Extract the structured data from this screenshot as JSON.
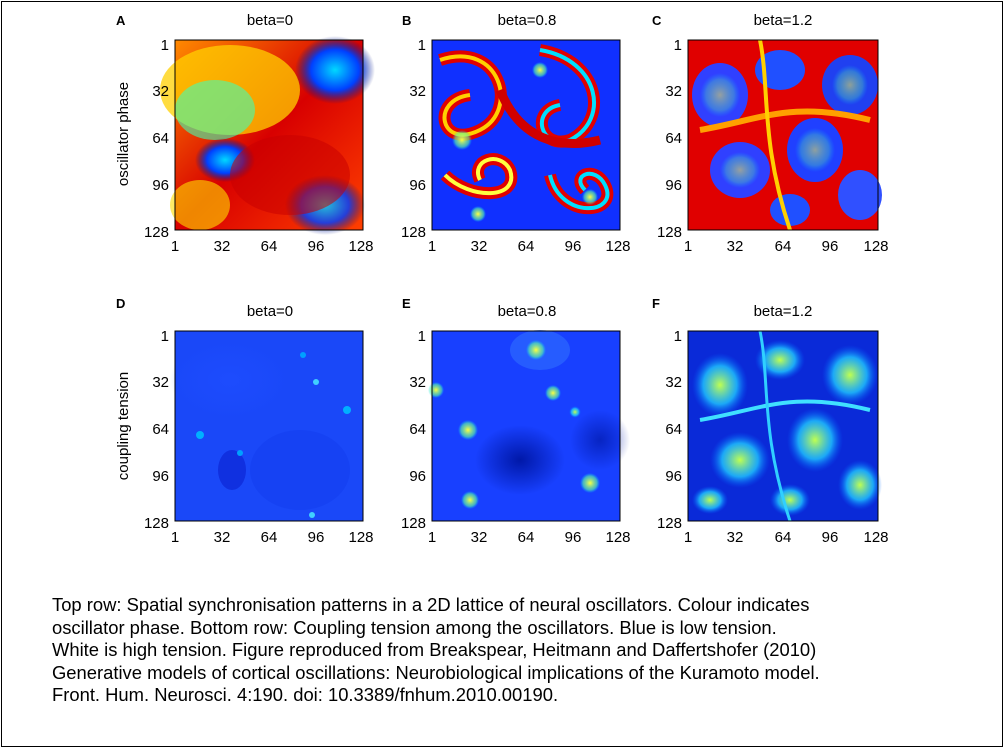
{
  "figure": {
    "rows": [
      {
        "ylabel": "oscillator phase",
        "colormap": "jet",
        "panels": [
          {
            "letter": "A",
            "title": "beta=0",
            "pattern": "smooth-phase-domains"
          },
          {
            "letter": "B",
            "title": "beta=0.8",
            "pattern": "spiral-waves"
          },
          {
            "letter": "C",
            "title": "beta=1.2",
            "pattern": "turbulent-spirals"
          }
        ]
      },
      {
        "ylabel": "coupling tension",
        "colormap": "jet-low",
        "panels": [
          {
            "letter": "D",
            "title": "beta=0",
            "pattern": "uniform-low-with-defects"
          },
          {
            "letter": "E",
            "title": "beta=0.8",
            "pattern": "spiral-cores"
          },
          {
            "letter": "F",
            "title": "beta=1.2",
            "pattern": "turbulent-tension"
          }
        ]
      }
    ],
    "xticks": [
      "1",
      "32",
      "64",
      "96",
      "128"
    ],
    "yticks": [
      "1",
      "32",
      "64",
      "96",
      "128"
    ]
  },
  "caption": "Top row: Spatial synchronisation patterns in a 2D lattice of neural oscillators. Colour indicates\noscillator phase.  Bottom row: Coupling tension among the oscillators. Blue is low tension.\nWhite is high tension. Figure reproduced from Breakspear, Heitmann and Daffertshofer (2010)\nGenerative models of cortical oscillations: Neurobiological implications of the Kuramoto model.\nFront. Hum. Neurosci. 4:190. doi: 10.3389/fnhum.2010.00190."
}
